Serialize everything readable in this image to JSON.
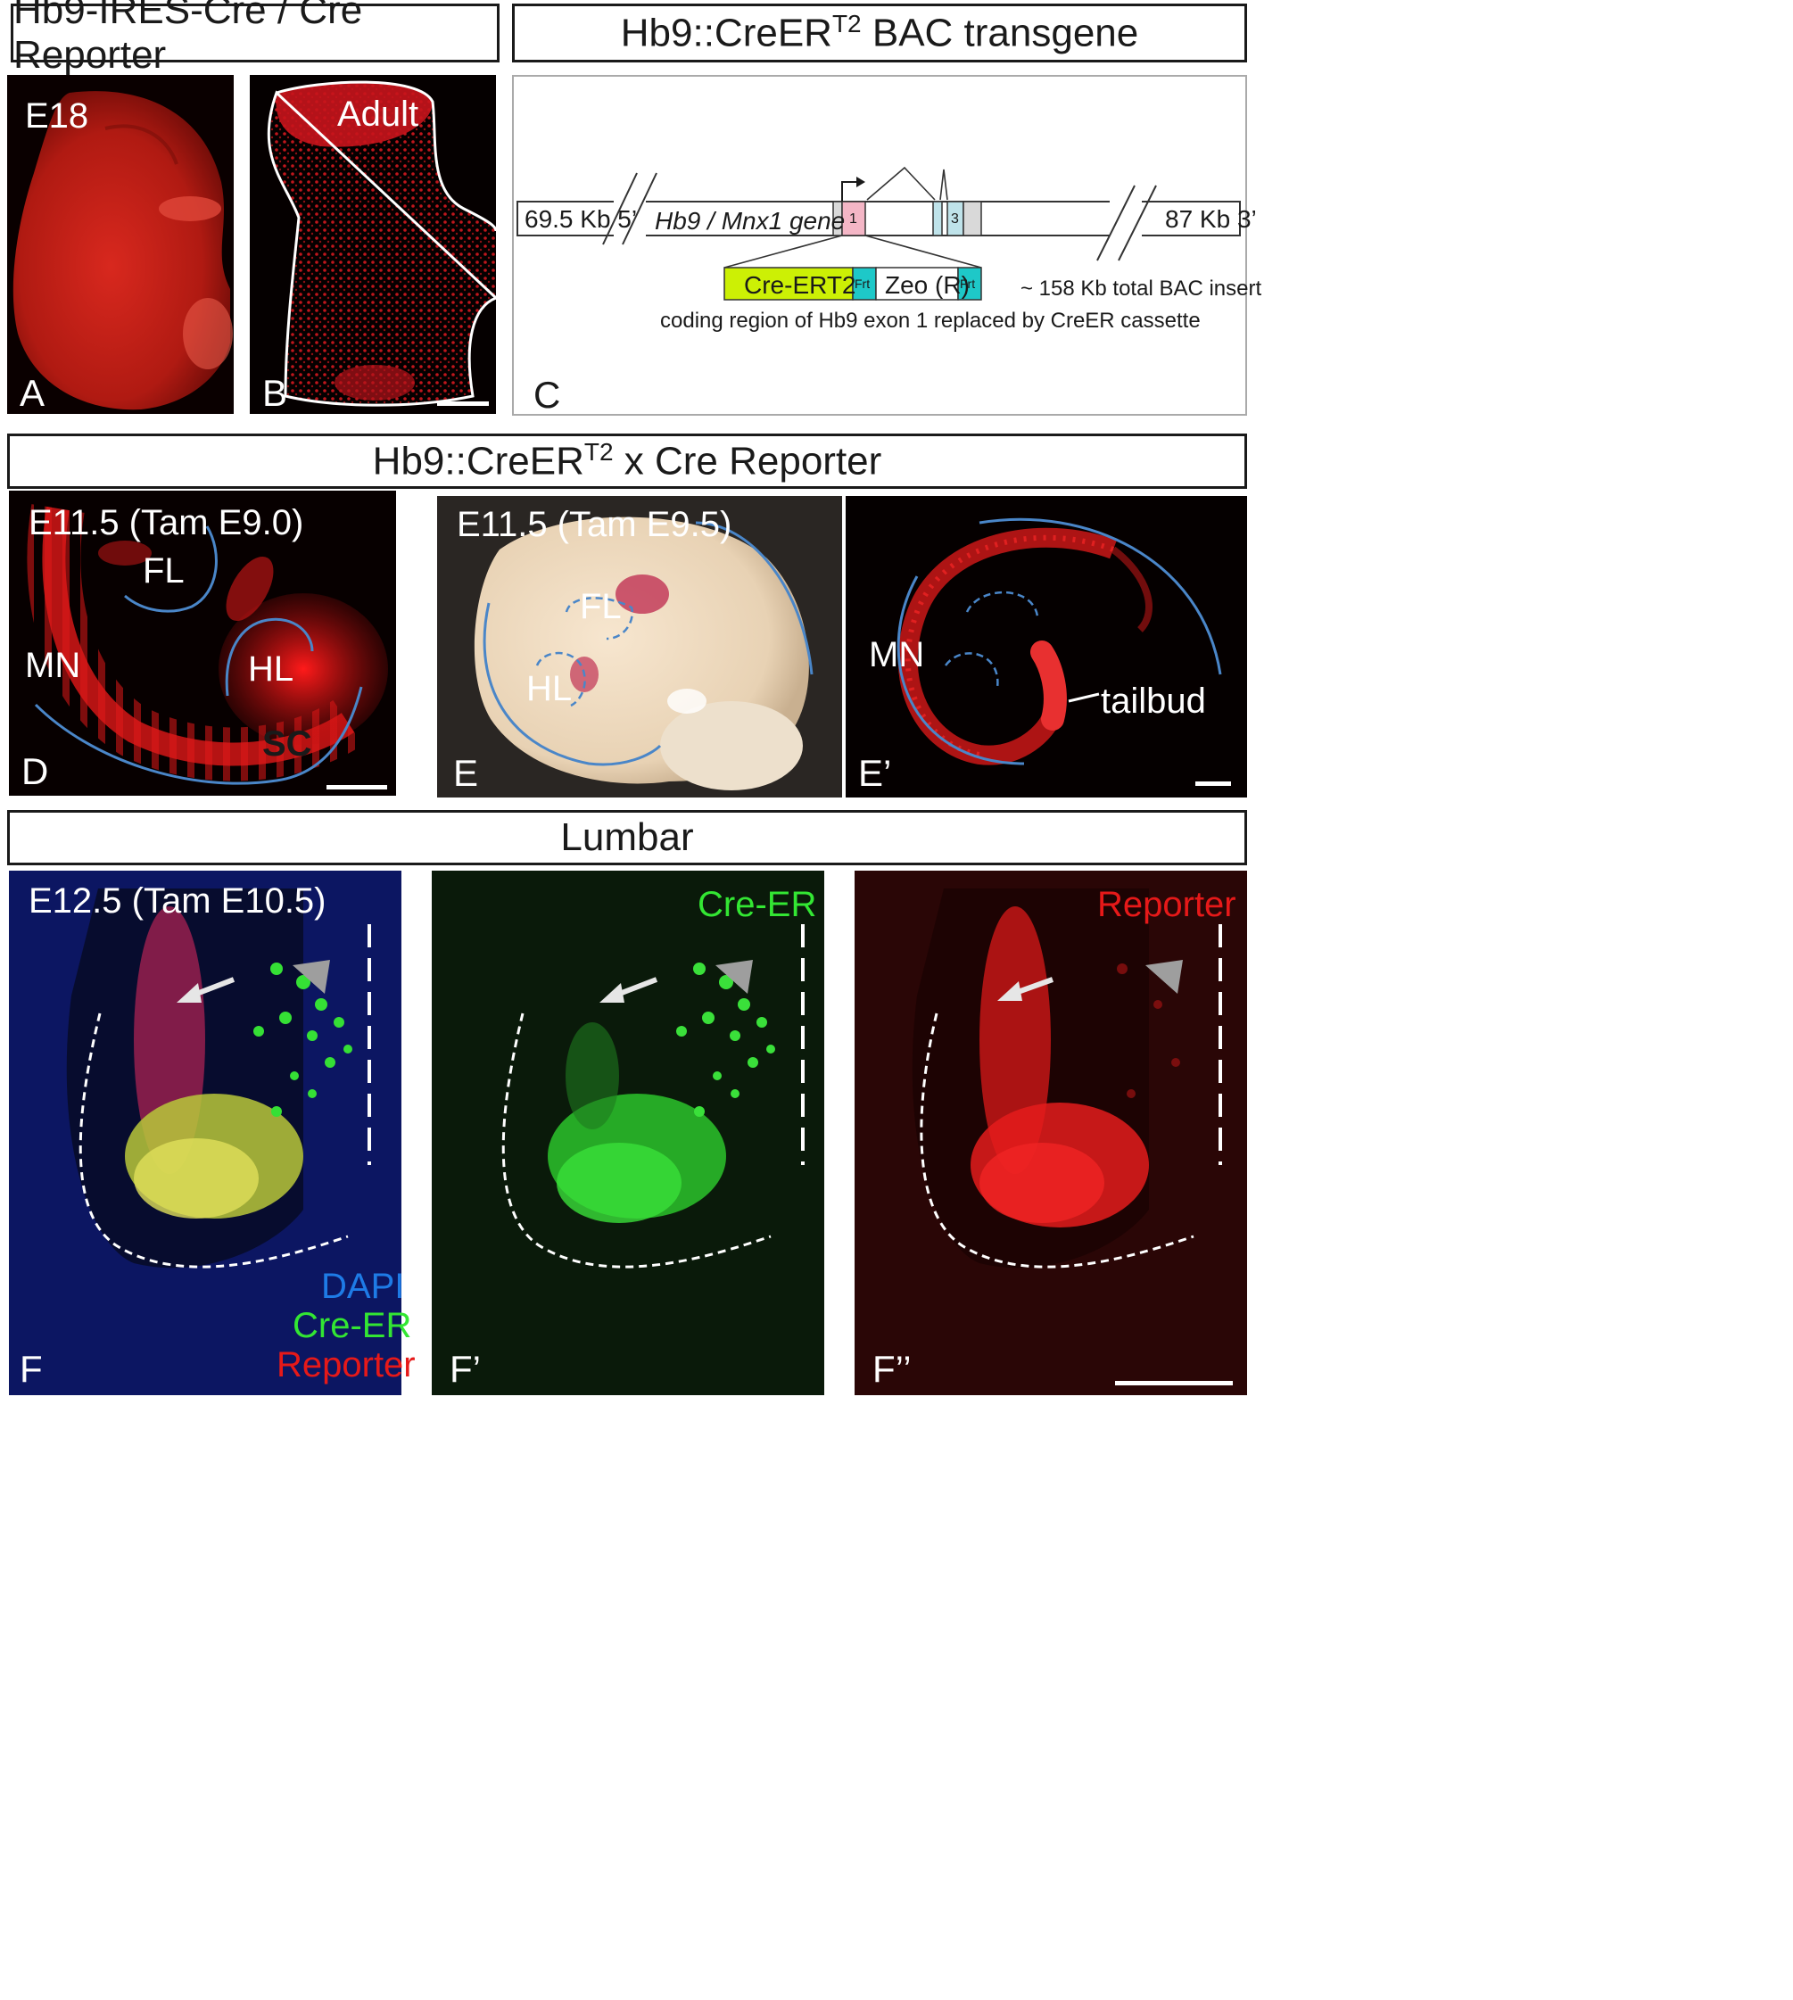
{
  "headers": {
    "top_left": "Hb9-IRES-Cre / Cre Reporter",
    "top_right_pre": "Hb9::CreER",
    "top_right_sup": "T2",
    "top_right_post": " BAC transgene",
    "middle_pre": "Hb9::CreER",
    "middle_sup": "T2",
    "middle_post": " x Cre Reporter",
    "bottom": "Lumbar"
  },
  "panelA": {
    "letter": "A",
    "stage": "E18"
  },
  "panelB": {
    "letter": "B",
    "stage": "Adult"
  },
  "panelC": {
    "letter": "C",
    "left_flank": "69.5 Kb 5’",
    "gene": "Hb9 / Mnx1 gene",
    "exon1": "1",
    "exon3": "3",
    "right_flank": "87 Kb 3’",
    "cre": "Cre-ERT2",
    "frt": "Frt",
    "zeo": "Zeo (R)",
    "insert_size": "~ 158 Kb total BAC insert",
    "caption": "coding region of Hb9 exon 1 replaced by CreER cassette"
  },
  "panelD": {
    "letter": "D",
    "stage": "E11.5 (Tam E9.0)",
    "fl": "FL",
    "hl": "HL",
    "mn": "MN",
    "sc": "SC"
  },
  "panelE": {
    "letter": "E",
    "stage": "E11.5 (Tam E9.5)",
    "fl": "FL",
    "hl": "HL"
  },
  "panelE2": {
    "letter": "E’",
    "mn": "MN",
    "tailbud": "tailbud"
  },
  "panelF": {
    "letter": "F",
    "stage": "E12.5 (Tam E10.5)",
    "dapi": "DAPI",
    "cre": "Cre-ER",
    "reporter": "Reporter"
  },
  "panelF1": {
    "letter": "F’",
    "channel": "Cre-ER"
  },
  "panelF2": {
    "letter": "F’’",
    "channel": "Reporter"
  },
  "colors": {
    "dapi": "#1e7be6",
    "cre": "#33e633",
    "reporter": "#e61919",
    "outline": "#4a86c8"
  }
}
